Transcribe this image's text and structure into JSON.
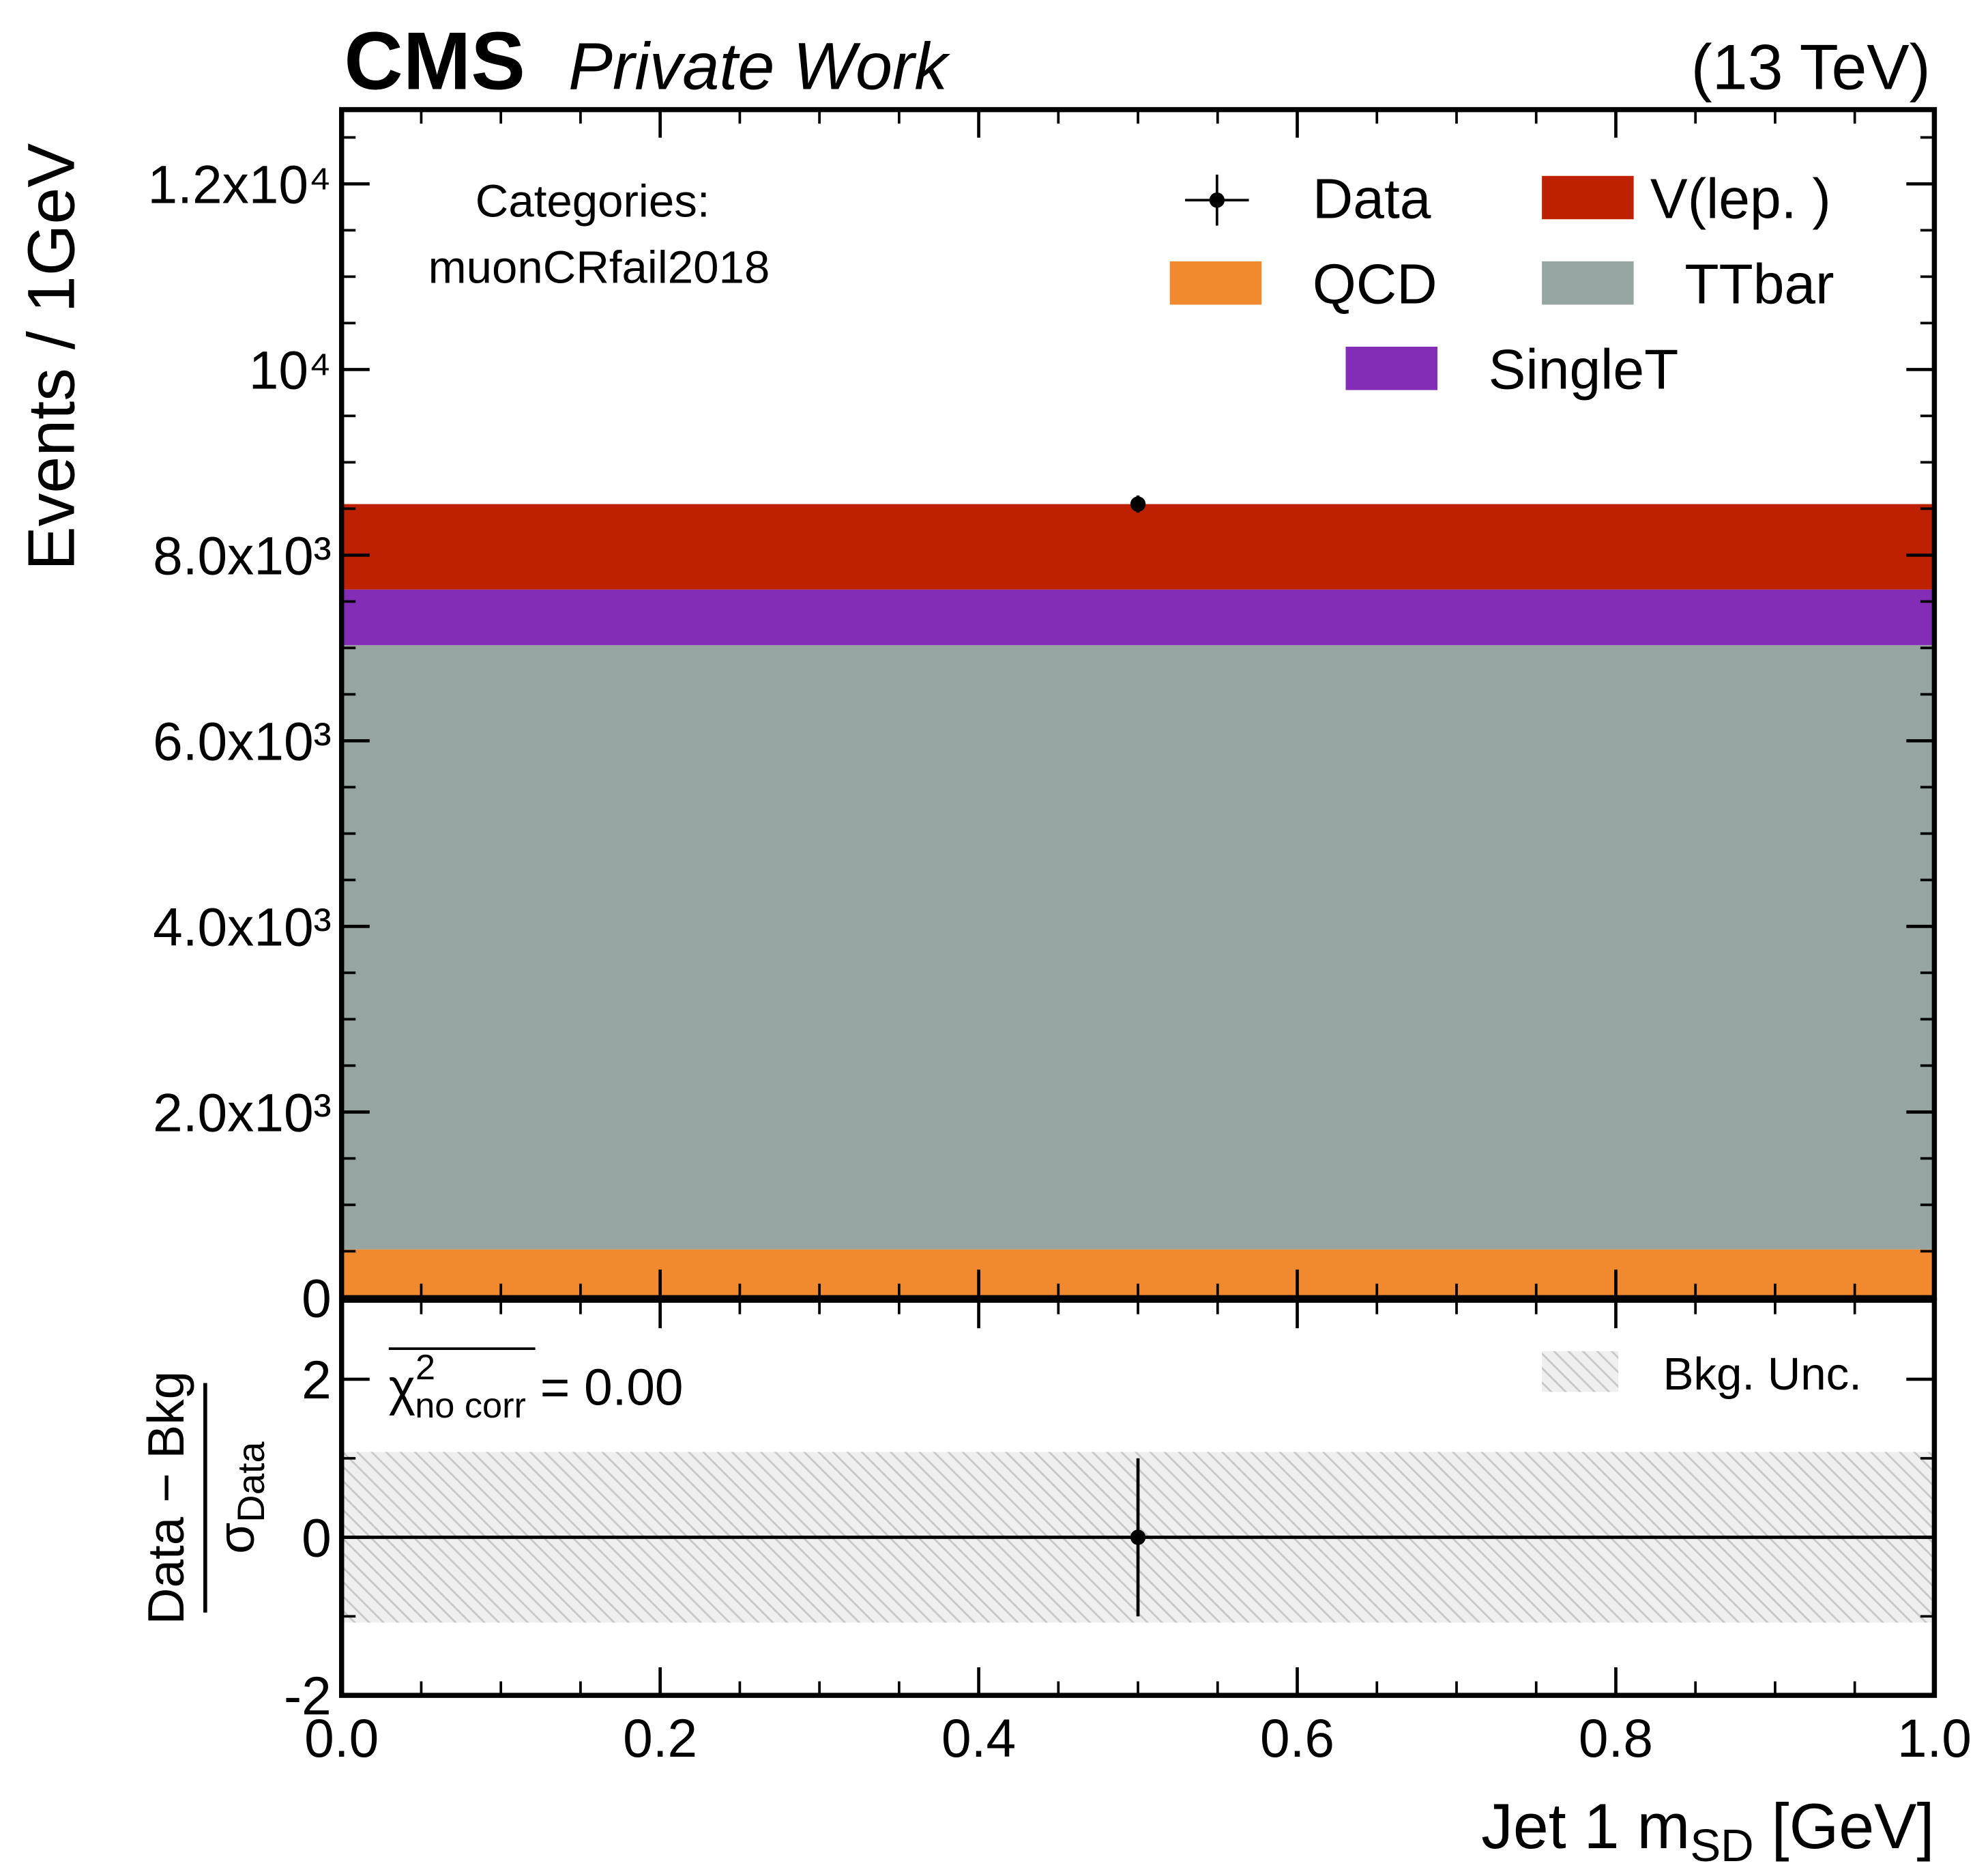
{
  "chart_data": [
    {
      "type": "histogram",
      "stacked": true,
      "title": "CMS",
      "subtitle": "Private Work",
      "energy_label": "(13 TeV)",
      "ylabel": "Events / 1GeV",
      "annotation": [
        "Categories:",
        "muonCRfail2018"
      ],
      "bins": [
        0,
        1
      ],
      "xlim": [
        0,
        1
      ],
      "xticks": [
        0,
        0.2,
        0.4,
        0.6,
        0.8,
        1
      ],
      "xminorticks": [
        0.05,
        0.1,
        0.15,
        0.25,
        0.3,
        0.35,
        0.45,
        0.5,
        0.55,
        0.65,
        0.7,
        0.75,
        0.85,
        0.9,
        0.95
      ],
      "ylim": [
        0,
        12800
      ],
      "yticks": [
        0,
        {
          "value": 2000,
          "label": "2.0x10³"
        },
        {
          "value": 4000,
          "label": "4.0x10³"
        },
        {
          "value": 6000,
          "label": "6.0x10³"
        },
        {
          "value": 8000,
          "label": "8.0x10³"
        },
        {
          "value": 10000,
          "label": "10⁴"
        },
        {
          "value": 12000,
          "label": "1.2x10⁴"
        }
      ],
      "yminorticks": [
        500,
        1000,
        1500,
        2500,
        3000,
        3500,
        4500,
        5000,
        5500,
        6500,
        7000,
        7500,
        8500,
        9000,
        9500,
        10500,
        11000,
        11500,
        12500
      ],
      "series": [
        {
          "name": "QCD",
          "color": "#f1892f",
          "values": [
            520
          ]
        },
        {
          "name": "TTbar",
          "color": "#96a5a2",
          "values": [
            6510
          ]
        },
        {
          "name": "SingleT",
          "color": "#832db6",
          "values": [
            600
          ]
        },
        {
          "name": "V(lep. )",
          "color": "#bd2101",
          "values": [
            920
          ]
        }
      ],
      "data": {
        "name": "Data",
        "color": "#000000",
        "x": [
          0.5
        ],
        "values": [
          8550
        ],
        "errors": [
          92
        ]
      }
    },
    {
      "type": "errorbar",
      "xlabel": {
        "text": "Jet 1 m",
        "sub": "SD",
        "after": " [GeV]"
      },
      "ylabel": {
        "numerator": "Data − Bkg",
        "denominator": "σ",
        "denominator_sub": "Data"
      },
      "annotation": {
        "symbol": "χ",
        "sup": "2",
        "sub": "no corr",
        "text": " = 0.00"
      },
      "xlim": [
        0,
        1
      ],
      "xticks": [
        {
          "value": 0,
          "label": "0.0"
        },
        0.2,
        0.4,
        0.6,
        0.8,
        {
          "value": 1,
          "label": "1.0"
        }
      ],
      "xminorticks": [
        0.05,
        0.1,
        0.15,
        0.25,
        0.3,
        0.35,
        0.45,
        0.5,
        0.55,
        0.65,
        0.7,
        0.75,
        0.85,
        0.9,
        0.95
      ],
      "ylim": [
        -2,
        3
      ],
      "yticks": [
        -2,
        0,
        2
      ],
      "yminorticks": [
        -1,
        1
      ],
      "hline": 0,
      "band": {
        "name": "Bkg. Unc.",
        "bins": [
          0,
          1
        ],
        "lower": [
          -1.08
        ],
        "upper": [
          1.08
        ]
      },
      "data": {
        "color": "#000000",
        "x": [
          0.5
        ],
        "values": [
          0
        ],
        "errors": [
          1
        ]
      }
    }
  ]
}
